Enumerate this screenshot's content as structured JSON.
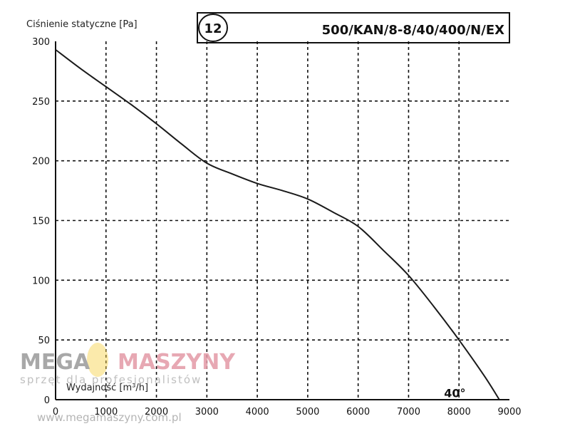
{
  "chart_data": {
    "type": "line",
    "title": "500/KAN/8-8/40/400/N/EX",
    "badge": "12",
    "ylabel": "Ciśnienie statyczne [Pa]",
    "xlabel": "Wydajność [m³/h]",
    "xlim": [
      0,
      9000
    ],
    "ylim": [
      0,
      300
    ],
    "x_ticks": [
      "0",
      "1000",
      "2000",
      "3000",
      "4000",
      "5000",
      "6000",
      "7000",
      "8000",
      "9000"
    ],
    "y_ticks": [
      "0",
      "50",
      "100",
      "150",
      "200",
      "250",
      "300"
    ],
    "grid": "dashed",
    "series": [
      {
        "label": "40°",
        "x": [
          0,
          500,
          1000,
          1500,
          2000,
          2500,
          3000,
          3500,
          4000,
          4500,
          5000,
          5500,
          6000,
          6500,
          7000,
          7500,
          8000,
          8500,
          8800
        ],
        "y": [
          293,
          277,
          262,
          247,
          231,
          214,
          198,
          189,
          181,
          175,
          168,
          157,
          145,
          125,
          104,
          78,
          50,
          20,
          0
        ]
      }
    ]
  },
  "watermark": {
    "brand_left": "MEGA",
    "brand_right": "MASZYNY",
    "tagline": "sprzęt dla profesjonalistów",
    "url": "www.megamaszyny.com.pl",
    "brand_left_color": "#9a9a9a",
    "brand_right_color": "#e39aa6",
    "accent_color": "#f5d24a"
  }
}
